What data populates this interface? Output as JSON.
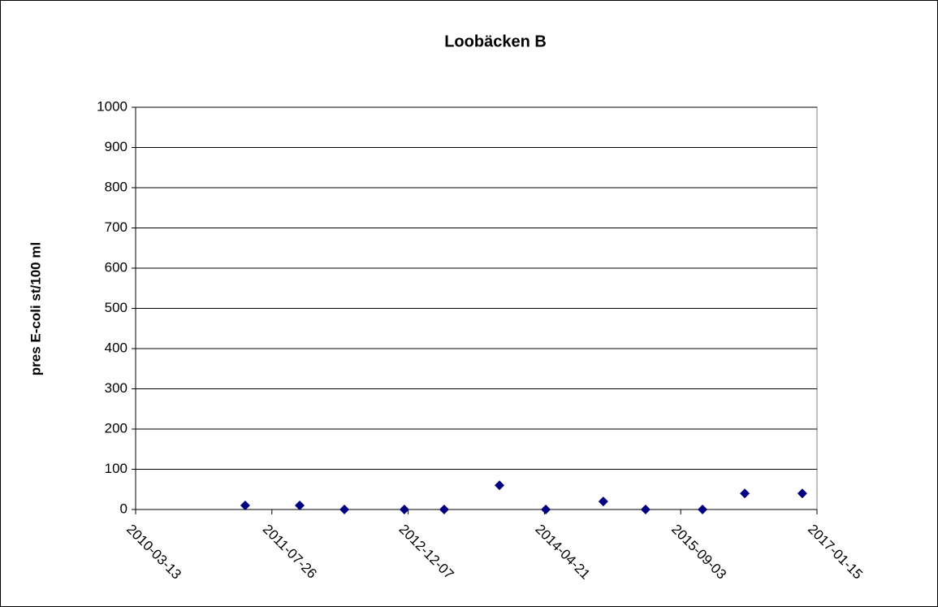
{
  "chart_data": {
    "type": "scatter",
    "title": "Loobäcken B",
    "ylabel": "pres E-coli st/100 ml",
    "series": [
      {
        "name": "Loobäcken B",
        "color": "#000080",
        "x": [
          "2011-04-19",
          "2011-11-05",
          "2012-04-17",
          "2012-11-23",
          "2013-04-18",
          "2013-11-07",
          "2014-04-26",
          "2014-11-23",
          "2015-04-27",
          "2015-11-22",
          "2016-04-25",
          "2016-11-22"
        ],
        "values": [
          10,
          10,
          0,
          0,
          0,
          60,
          0,
          20,
          0,
          0,
          40,
          40
        ]
      }
    ],
    "xlim": [
      "2010-03-13",
      "2017-01-15"
    ],
    "xticks": [
      "2010-03-13",
      "2011-07-26",
      "2012-12-07",
      "2014-04-21",
      "2015-09-03",
      "2017-01-15"
    ],
    "ylim": [
      0,
      1000
    ],
    "yticks": [
      0,
      100,
      200,
      300,
      400,
      500,
      600,
      700,
      800,
      900,
      1000
    ],
    "grid": true
  }
}
